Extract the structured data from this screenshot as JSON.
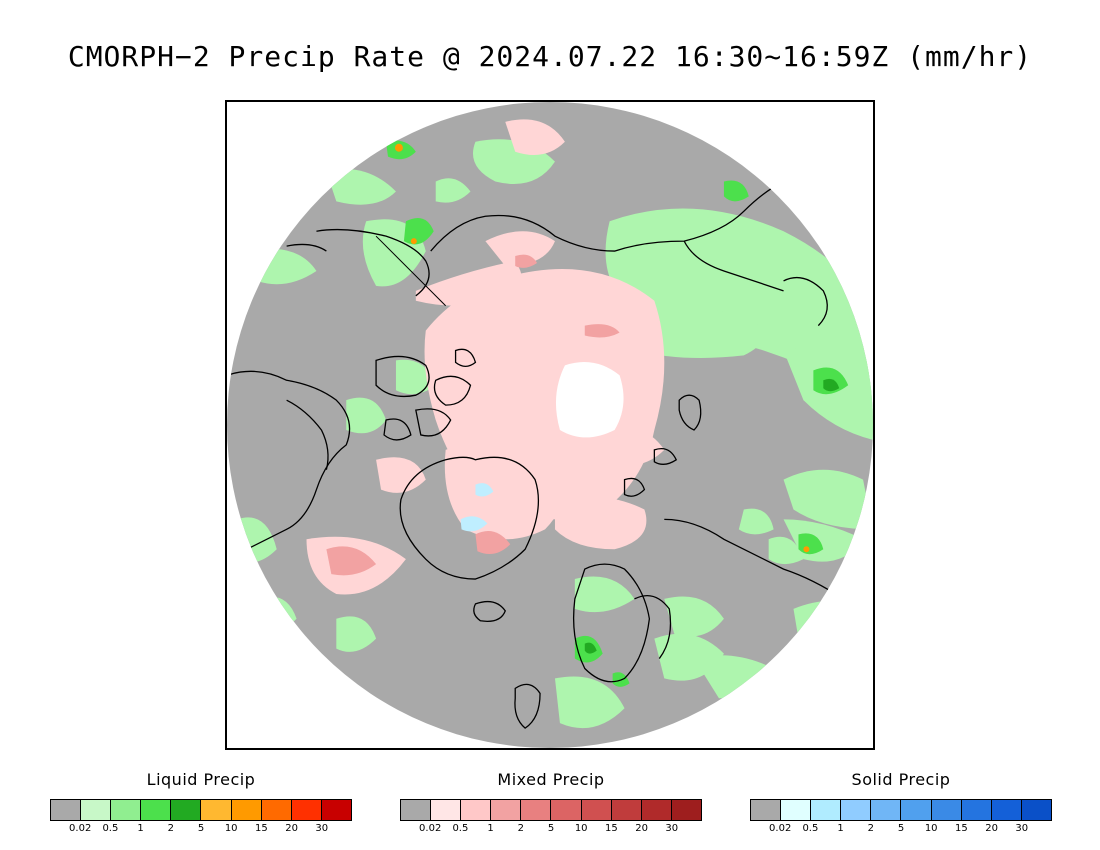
{
  "title": "CMORPH−2 Precip Rate @ 2024.07.22 16:30~16:59Z (mm/hr)",
  "map": {
    "projection": "north-polar-stereographic",
    "background_color": "#ffffff",
    "no_precip_color": "#a9a9a9",
    "coastline_color": "#000000"
  },
  "legends": [
    {
      "title": "Liquid Precip",
      "colors": [
        "#a9a9a9",
        "#c8f8c8",
        "#90ee90",
        "#4ce04c",
        "#22aa22",
        "#ffb830",
        "#ff9a00",
        "#ff6a00",
        "#ff3000",
        "#c80000"
      ],
      "ticks": [
        "0.02",
        "0.5",
        "1",
        "2",
        "5",
        "10",
        "15",
        "20",
        "30"
      ]
    },
    {
      "title": "Mixed Precip",
      "colors": [
        "#a9a9a9",
        "#ffe6e6",
        "#ffc8c8",
        "#f2a2a2",
        "#e88080",
        "#dc6464",
        "#d05050",
        "#c03c3c",
        "#b02a2a",
        "#9e1e1e"
      ],
      "ticks": [
        "0.02",
        "0.5",
        "1",
        "2",
        "5",
        "10",
        "15",
        "20",
        "30"
      ]
    },
    {
      "title": "Solid Precip",
      "colors": [
        "#a9a9a9",
        "#e0ffff",
        "#b0ecff",
        "#90ccff",
        "#70b6f6",
        "#50a0ee",
        "#3a8ae6",
        "#2474e0",
        "#1460d8",
        "#0a50c8"
      ],
      "ticks": [
        "0.02",
        "0.5",
        "1",
        "2",
        "5",
        "10",
        "15",
        "20",
        "30"
      ]
    }
  ]
}
